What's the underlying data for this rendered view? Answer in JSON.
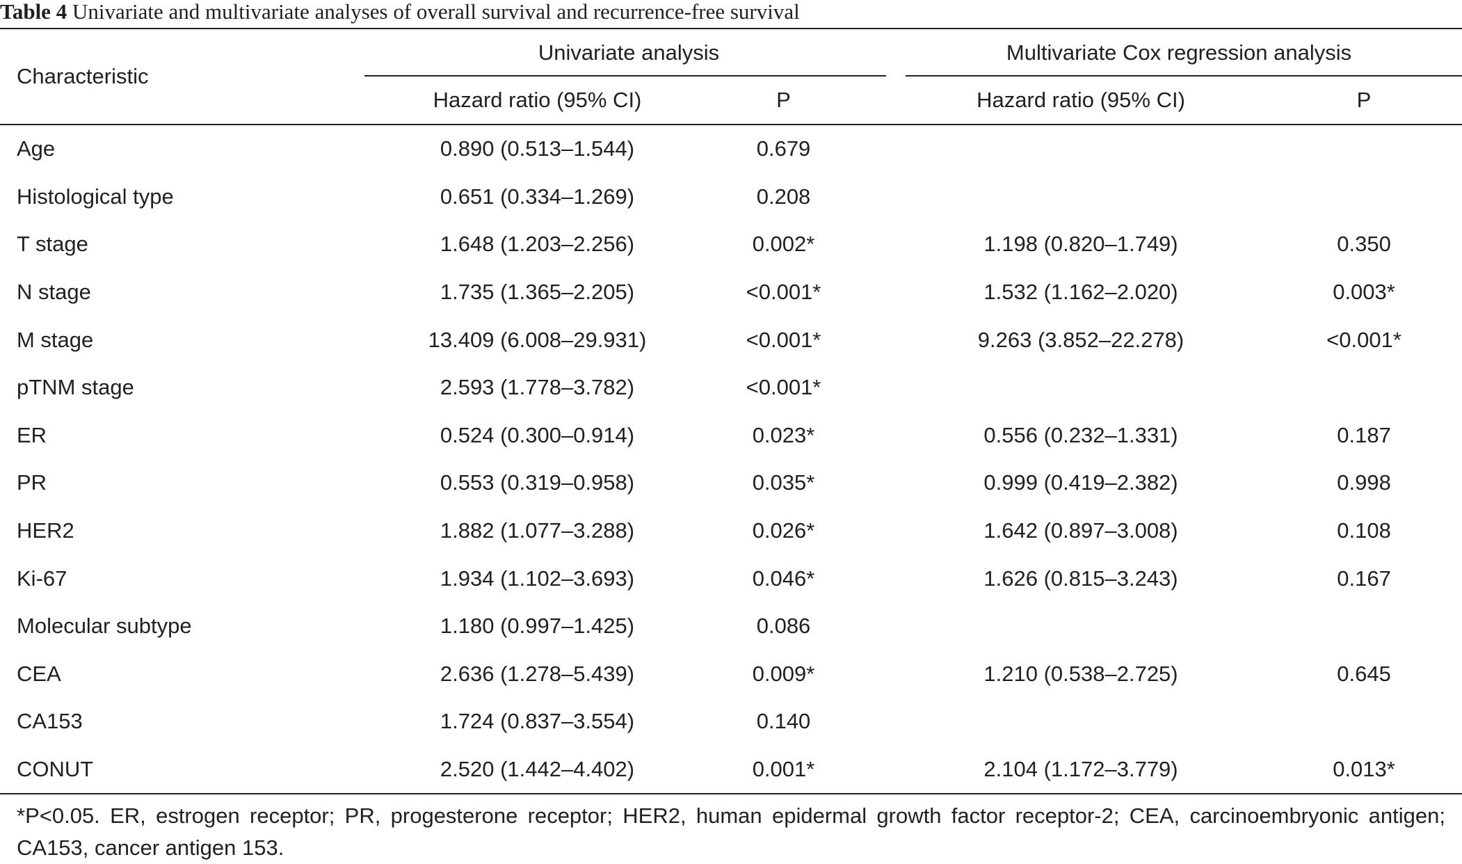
{
  "caption": {
    "label": "Table 4",
    "text": "Univariate and multivariate analyses of overall survival and recurrence-free survival"
  },
  "header": {
    "characteristic": "Characteristic",
    "univariate": "Univariate analysis",
    "multivariate": "Multivariate Cox regression analysis",
    "hazard_ratio": "Hazard ratio (95% CI)",
    "p": "P"
  },
  "rows": [
    {
      "name": "Age",
      "uni_hr": "0.890 (0.513–1.544)",
      "uni_p": "0.679",
      "multi_hr": "",
      "multi_p": ""
    },
    {
      "name": "Histological type",
      "uni_hr": "0.651 (0.334–1.269)",
      "uni_p": "0.208",
      "multi_hr": "",
      "multi_p": ""
    },
    {
      "name": "T stage",
      "uni_hr": "1.648 (1.203–2.256)",
      "uni_p": "0.002*",
      "multi_hr": "1.198 (0.820–1.749)",
      "multi_p": "0.350"
    },
    {
      "name": "N stage",
      "uni_hr": "1.735 (1.365–2.205)",
      "uni_p": "<0.001*",
      "multi_hr": "1.532 (1.162–2.020)",
      "multi_p": "0.003*"
    },
    {
      "name": "M stage",
      "uni_hr": "13.409 (6.008–29.931)",
      "uni_p": "<0.001*",
      "multi_hr": "9.263 (3.852–22.278)",
      "multi_p": "<0.001*"
    },
    {
      "name": "pTNM stage",
      "uni_hr": "2.593 (1.778–3.782)",
      "uni_p": "<0.001*",
      "multi_hr": "",
      "multi_p": ""
    },
    {
      "name": "ER",
      "uni_hr": "0.524 (0.300–0.914)",
      "uni_p": "0.023*",
      "multi_hr": "0.556 (0.232–1.331)",
      "multi_p": "0.187"
    },
    {
      "name": "PR",
      "uni_hr": "0.553 (0.319–0.958)",
      "uni_p": "0.035*",
      "multi_hr": "0.999 (0.419–2.382)",
      "multi_p": "0.998"
    },
    {
      "name": "HER2",
      "uni_hr": "1.882 (1.077–3.288)",
      "uni_p": "0.026*",
      "multi_hr": "1.642 (0.897–3.008)",
      "multi_p": "0.108"
    },
    {
      "name": "Ki-67",
      "uni_hr": "1.934 (1.102–3.693)",
      "uni_p": "0.046*",
      "multi_hr": "1.626 (0.815–3.243)",
      "multi_p": "0.167"
    },
    {
      "name": "Molecular subtype",
      "uni_hr": "1.180 (0.997–1.425)",
      "uni_p": "0.086",
      "multi_hr": "",
      "multi_p": ""
    },
    {
      "name": "CEA",
      "uni_hr": "2.636 (1.278–5.439)",
      "uni_p": "0.009*",
      "multi_hr": "1.210 (0.538–2.725)",
      "multi_p": "0.645"
    },
    {
      "name": "CA153",
      "uni_hr": "1.724 (0.837–3.554)",
      "uni_p": "0.140",
      "multi_hr": "",
      "multi_p": ""
    },
    {
      "name": "CONUT",
      "uni_hr": "2.520 (1.442–4.402)",
      "uni_p": "0.001*",
      "multi_hr": "2.104 (1.172–3.779)",
      "multi_p": "0.013*"
    }
  ],
  "footnote": "*P<0.05. ER, estrogen receptor; PR, progesterone receptor; HER2, human epidermal growth factor receptor-2; CEA, carcinoembryonic antigen; CA153, cancer antigen 153."
}
